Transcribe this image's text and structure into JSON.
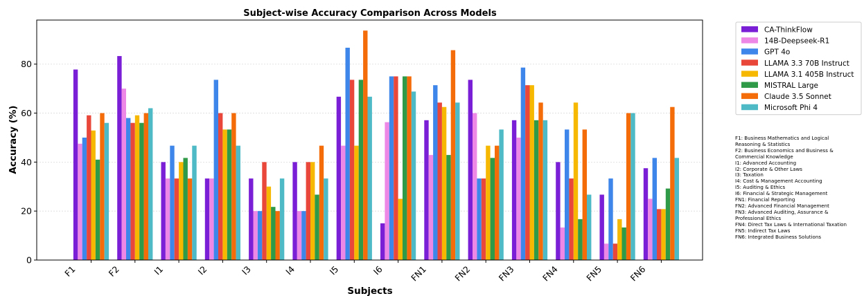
{
  "chart_data": {
    "type": "bar",
    "title": "Subject-wise Accuracy Comparison Across Models",
    "xlabel": "Subjects",
    "ylabel": "Accuracy (%)",
    "ylim": [
      0,
      98
    ],
    "yticks": [
      0,
      20,
      40,
      60,
      80
    ],
    "grid": "y-dotted",
    "legend_position": "outside-right",
    "categories": [
      "F1",
      "F2",
      "I1",
      "I2",
      "I3",
      "I4",
      "I5",
      "I6",
      "FN1",
      "FN2",
      "FN3",
      "FN4",
      "FN5",
      "FN6"
    ],
    "series": [
      {
        "name": "CA-ThinkFlow",
        "color": "#7b1fd6",
        "values": [
          77.8,
          83.3,
          40.0,
          33.3,
          33.3,
          40.0,
          66.7,
          15.0,
          57.1,
          73.6,
          57.1,
          40.0,
          26.7,
          37.5
        ]
      },
      {
        "name": "14B-Deepseek-R1",
        "color": "#ee88e6",
        "values": [
          47.5,
          70.0,
          33.3,
          33.3,
          20.0,
          20.0,
          46.7,
          56.3,
          42.9,
          60.0,
          50.0,
          13.3,
          6.7,
          25.0
        ]
      },
      {
        "name": "GPT 4o",
        "color": "#3f86ea",
        "values": [
          50.0,
          58.0,
          46.7,
          73.6,
          20.0,
          20.0,
          86.7,
          75.0,
          71.4,
          33.3,
          78.6,
          53.3,
          33.3,
          41.7
        ]
      },
      {
        "name": "LLAMA 3.3 70B Instruct",
        "color": "#e8473a",
        "values": [
          59.1,
          56.0,
          33.3,
          60.0,
          40.0,
          40.0,
          73.6,
          75.0,
          64.3,
          33.3,
          71.4,
          33.3,
          6.7,
          20.8
        ]
      },
      {
        "name": "LLAMA 3.1 405B Instruct",
        "color": "#f6b800",
        "values": [
          52.9,
          59.1,
          40.0,
          53.3,
          30.0,
          40.0,
          46.7,
          25.0,
          62.5,
          46.7,
          71.4,
          64.3,
          16.7,
          20.8
        ]
      },
      {
        "name": "MISTRAL Large",
        "color": "#2f9a47",
        "values": [
          41.0,
          56.0,
          41.7,
          53.3,
          21.7,
          26.7,
          73.6,
          75.0,
          42.9,
          41.7,
          57.1,
          16.7,
          13.3,
          29.2
        ]
      },
      {
        "name": "Claude 3.5 Sonnet",
        "color": "#f46c0a",
        "values": [
          60.0,
          60.0,
          33.3,
          60.0,
          20.0,
          46.7,
          93.7,
          75.0,
          85.7,
          46.7,
          64.3,
          53.3,
          60.0,
          62.5
        ]
      },
      {
        "name": "Microsoft Phi 4",
        "color": "#4dbac6",
        "values": [
          56.0,
          62.0,
          46.7,
          46.7,
          33.3,
          33.3,
          66.7,
          68.8,
          64.3,
          53.3,
          57.1,
          26.7,
          60.0,
          41.7
        ]
      }
    ]
  },
  "notes": [
    "F1: Business Mathematics and Logical",
    "Reasoning & Statistics",
    "F2: Business Economics and Business &",
    "Commercial Knowledge",
    "I1: Advanced Accounting",
    "I2: Corporate & Other Laws",
    "I3: Taxation",
    "I4: Cost & Management Accounting",
    "I5: Auditing & Ethics",
    "I6: Financial & Strategic Management",
    "FN1: Financial Reporting",
    "FN2: Advanced Financial Management",
    "FN3: Advanced Auditing, Assurance &",
    "Professional Ethics",
    "FN4: Direct Tax Laws & International Taxation",
    "FN5: Indirect Tax Laws",
    "FN6: Integrated Business Solutions"
  ]
}
